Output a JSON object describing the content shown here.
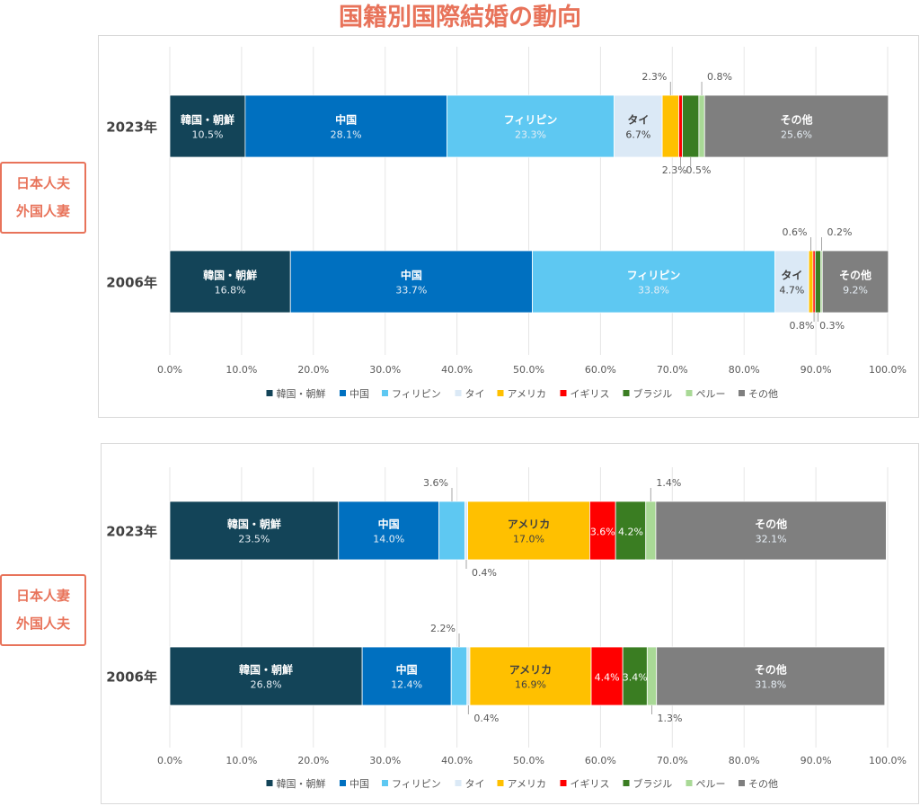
{
  "title": "国籍別国際結婚の動向",
  "colors": {
    "韓国・朝鮮": "#134458",
    "中国": "#0070c0",
    "フィリピン": "#5ec8f2",
    "タイ": "#dbe9f6",
    "アメリカ": "#ffc000",
    "イギリス": "#ff0000",
    "ブラジル": "#3a7d22",
    "ペルー": "#a9d996",
    "その他": "#7f7f7f"
  },
  "chart_data": [
    {
      "type": "bar",
      "orientation": "horizontal",
      "stacked": true,
      "side_label": [
        "日本人夫",
        "外国人妻"
      ],
      "categories": [
        "2023年",
        "2006年"
      ],
      "series": [
        {
          "name": "韓国・朝鮮",
          "values": [
            10.5,
            16.8
          ]
        },
        {
          "name": "中国",
          "values": [
            28.1,
            33.7
          ]
        },
        {
          "name": "フィリピン",
          "values": [
            23.3,
            33.8
          ]
        },
        {
          "name": "タイ",
          "values": [
            6.7,
            4.7
          ]
        },
        {
          "name": "アメリカ",
          "values": [
            2.3,
            0.6
          ]
        },
        {
          "name": "イギリス",
          "values": [
            0.5,
            0.3
          ]
        },
        {
          "name": "ブラジル",
          "values": [
            2.3,
            0.8
          ]
        },
        {
          "name": "ペルー",
          "values": [
            0.8,
            0.2
          ]
        },
        {
          "name": "その他",
          "values": [
            25.6,
            9.2
          ]
        }
      ],
      "xlim": [
        0,
        100
      ],
      "xticks": [
        "0.0%",
        "10.0%",
        "20.0%",
        "30.0%",
        "40.0%",
        "50.0%",
        "60.0%",
        "70.0%",
        "80.0%",
        "90.0%",
        "100.0%"
      ],
      "grid": true,
      "legend": "bottom"
    },
    {
      "type": "bar",
      "orientation": "horizontal",
      "stacked": true,
      "side_label": [
        "日本人妻",
        "外国人夫"
      ],
      "categories": [
        "2023年",
        "2006年"
      ],
      "series": [
        {
          "name": "韓国・朝鮮",
          "values": [
            23.5,
            26.8
          ]
        },
        {
          "name": "中国",
          "values": [
            14.0,
            12.4
          ]
        },
        {
          "name": "フィリピン",
          "values": [
            3.6,
            2.2
          ]
        },
        {
          "name": "タイ",
          "values": [
            0.4,
            0.4
          ]
        },
        {
          "name": "アメリカ",
          "values": [
            17.0,
            16.9
          ]
        },
        {
          "name": "イギリス",
          "values": [
            3.6,
            4.4
          ]
        },
        {
          "name": "ブラジル",
          "values": [
            4.2,
            3.4
          ]
        },
        {
          "name": "ペルー",
          "values": [
            1.4,
            1.3
          ]
        },
        {
          "name": "その他",
          "values": [
            32.1,
            31.8
          ]
        }
      ],
      "xlim": [
        0,
        100
      ],
      "xticks": [
        "0.0%",
        "10.0%",
        "20.0%",
        "30.0%",
        "40.0%",
        "50.0%",
        "60.0%",
        "70.0%",
        "80.0%",
        "90.0%",
        "100.0%"
      ],
      "grid": true,
      "legend": "bottom"
    }
  ]
}
